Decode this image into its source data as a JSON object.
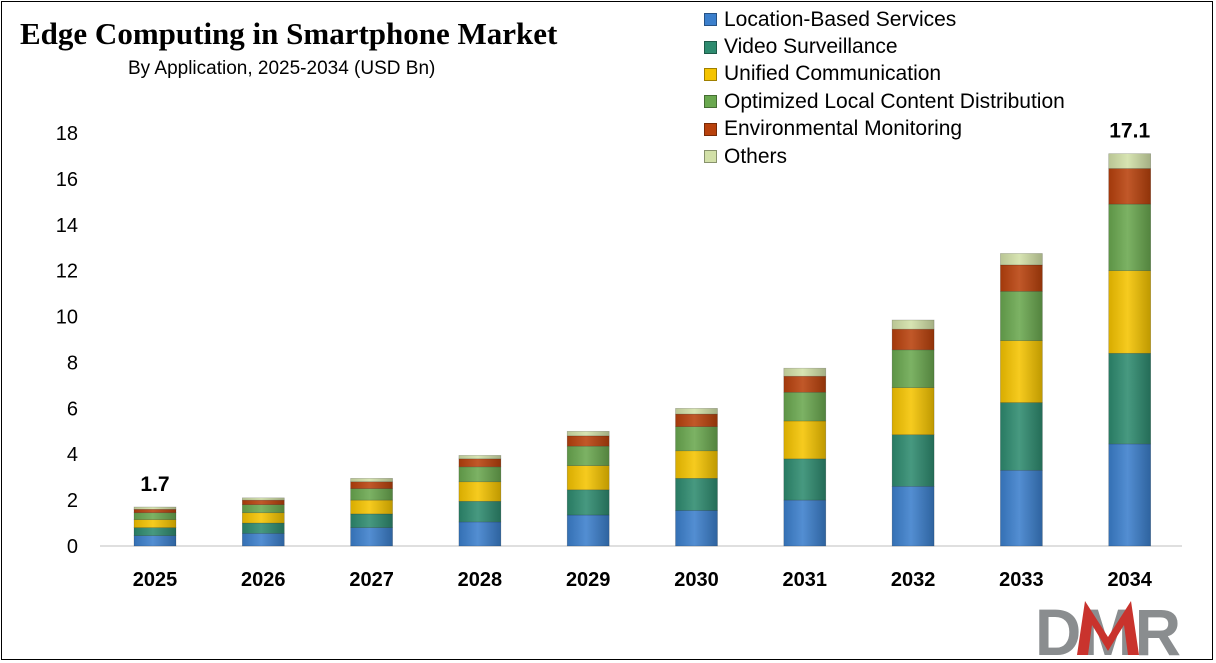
{
  "title": "Edge Computing in Smartphone Market",
  "subtitle": "By Application, 2025-2034 (USD Bn)",
  "logo_text": "DMR",
  "chart_data": {
    "type": "bar",
    "stacked": true,
    "categories": [
      "2025",
      "2026",
      "2027",
      "2028",
      "2029",
      "2030",
      "2031",
      "2032",
      "2033",
      "2034"
    ],
    "series": [
      {
        "name": "Location-Based Services",
        "color": "#3b7fcc",
        "values": [
          0.45,
          0.55,
          0.8,
          1.05,
          1.35,
          1.55,
          2.0,
          2.6,
          3.3,
          4.45
        ]
      },
      {
        "name": "Video Surveillance",
        "color": "#2e8b6f",
        "values": [
          0.35,
          0.45,
          0.6,
          0.9,
          1.1,
          1.4,
          1.8,
          2.25,
          2.95,
          3.95
        ]
      },
      {
        "name": "Unified Communication",
        "color": "#f5c400",
        "values": [
          0.35,
          0.45,
          0.6,
          0.85,
          1.05,
          1.2,
          1.65,
          2.05,
          2.7,
          3.6
        ]
      },
      {
        "name": "Optimized Local Content Distribution",
        "color": "#6aa84f",
        "values": [
          0.3,
          0.35,
          0.5,
          0.65,
          0.85,
          1.05,
          1.25,
          1.65,
          2.15,
          2.9
        ]
      },
      {
        "name": "Environmental Monitoring",
        "color": "#b8410c",
        "values": [
          0.15,
          0.2,
          0.3,
          0.35,
          0.45,
          0.55,
          0.7,
          0.9,
          1.15,
          1.55
        ]
      },
      {
        "name": "Others",
        "color": "#d2e0a8",
        "values": [
          0.1,
          0.1,
          0.15,
          0.15,
          0.2,
          0.25,
          0.35,
          0.4,
          0.5,
          0.65
        ]
      }
    ],
    "yticks": [
      0,
      2,
      4,
      6,
      8,
      10,
      12,
      14,
      16,
      18
    ],
    "ylim": [
      0,
      18
    ],
    "grid": false,
    "legend_position": "top-right",
    "annotations": [
      {
        "category": "2025",
        "text": "1.7"
      },
      {
        "category": "2034",
        "text": "17.1"
      }
    ],
    "xlabel": "",
    "ylabel": ""
  }
}
